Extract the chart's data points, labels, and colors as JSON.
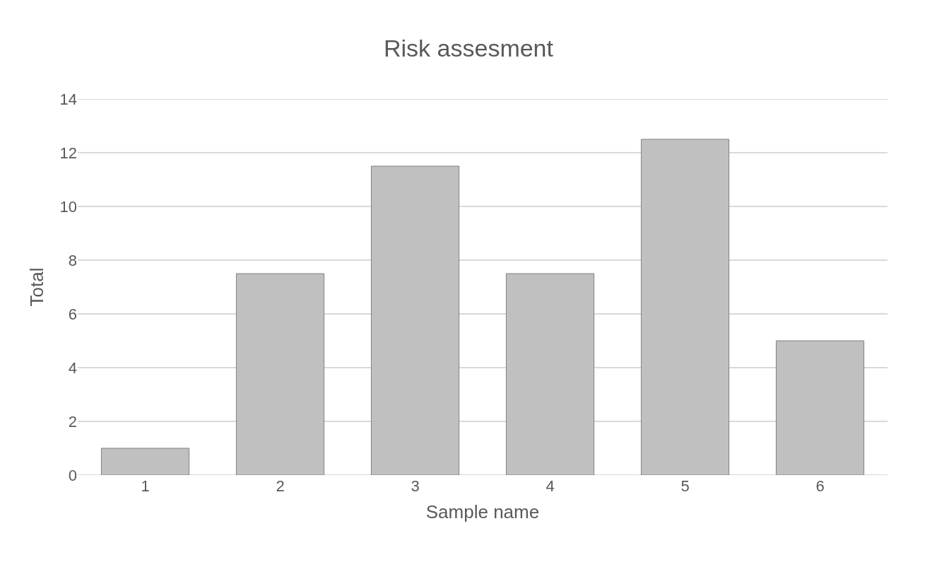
{
  "chart_data": {
    "type": "bar",
    "title": "Risk assesment",
    "xlabel": "Sample name",
    "ylabel": "Total",
    "categories": [
      "1",
      "2",
      "3",
      "4",
      "5",
      "6"
    ],
    "values": [
      1,
      7.5,
      11.5,
      7.5,
      12.5,
      5
    ],
    "color": "#c0c0c0",
    "ylim": [
      0,
      14
    ],
    "yticks": [
      0,
      2,
      4,
      6,
      8,
      10,
      12,
      14
    ],
    "grid": "y"
  }
}
